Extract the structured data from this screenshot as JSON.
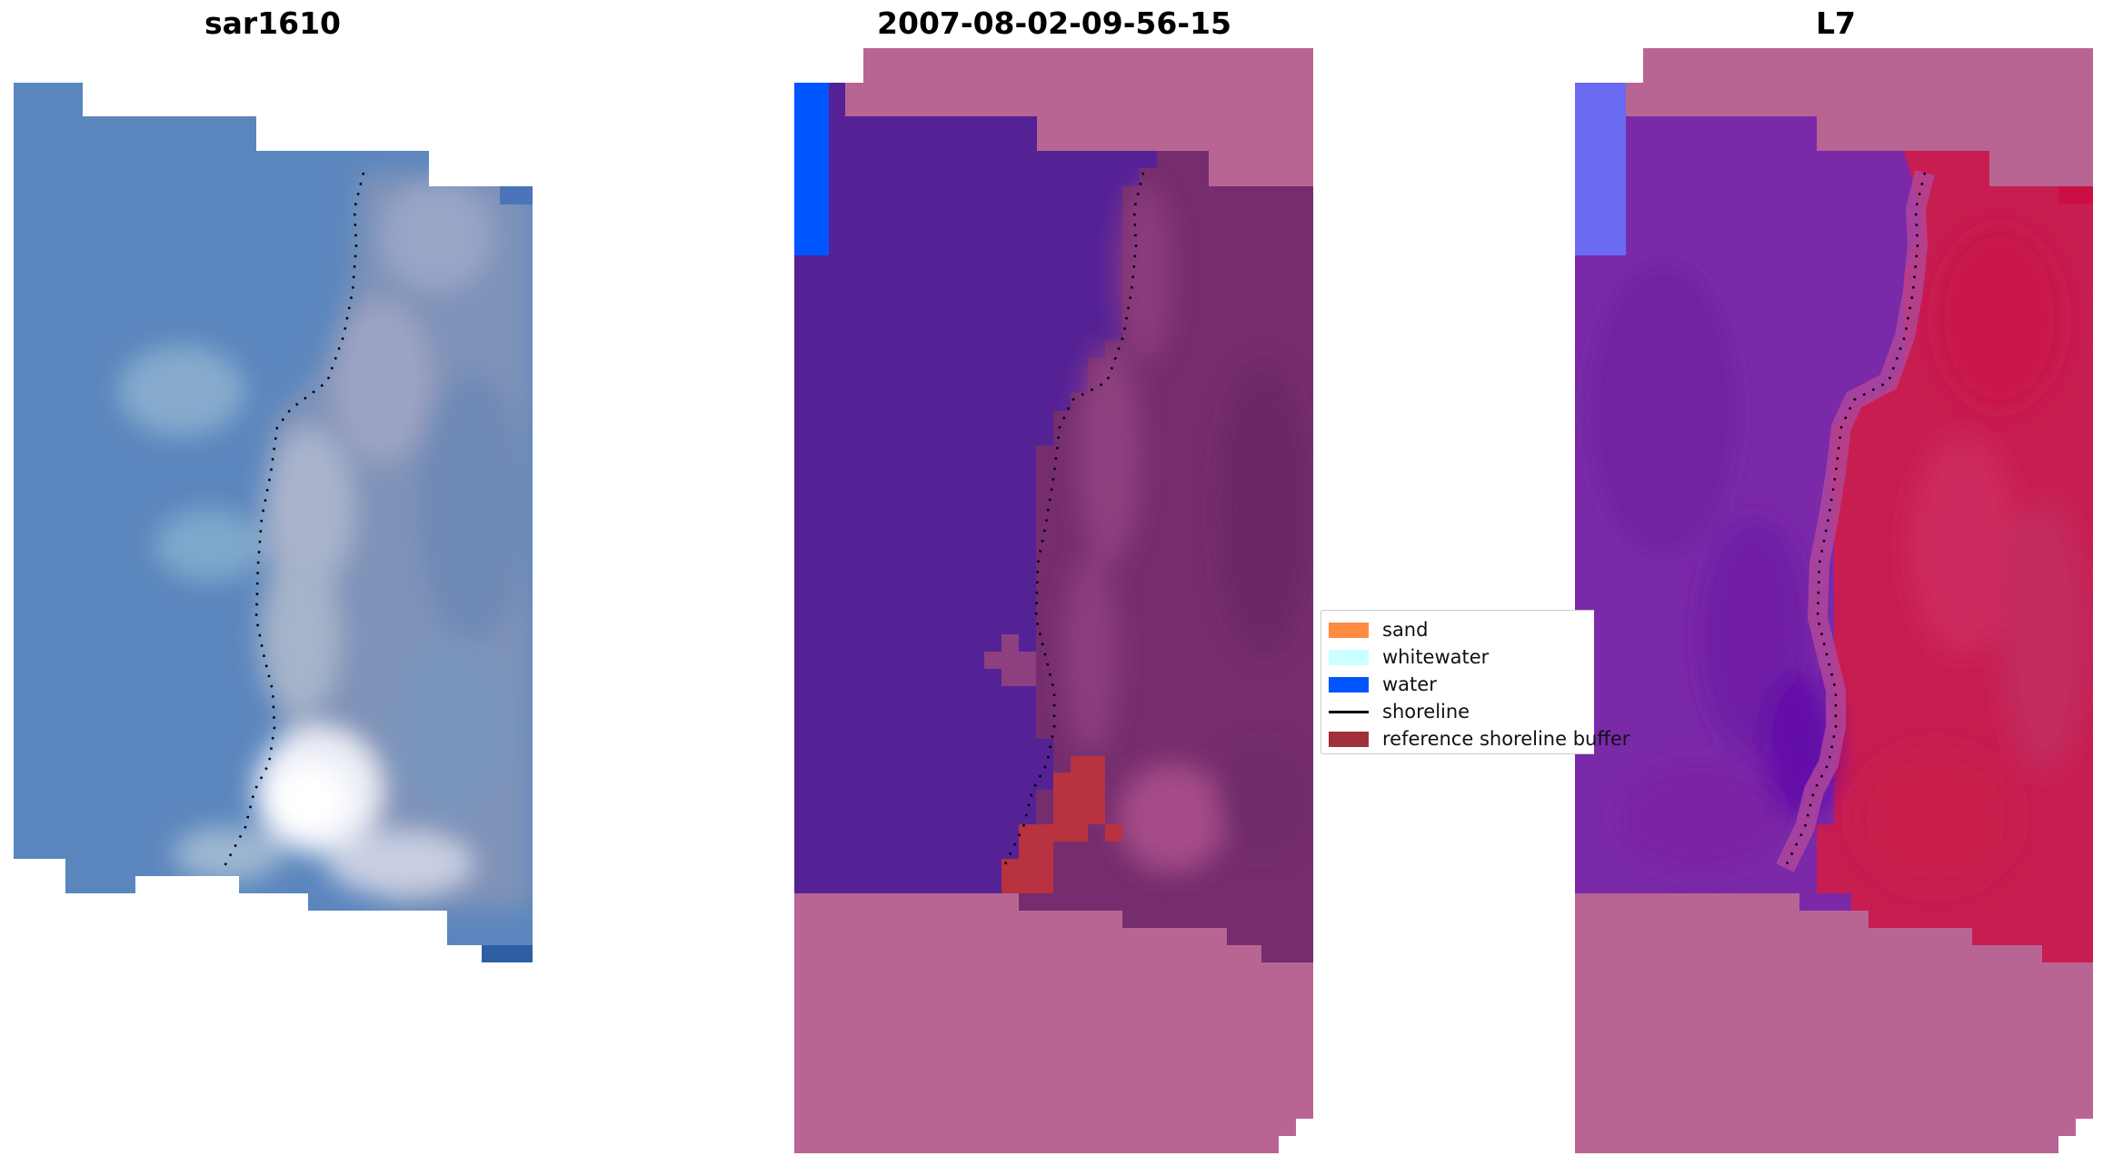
{
  "panels": [
    {
      "title": "sar1610"
    },
    {
      "title": "2007-08-02-09-56-15"
    },
    {
      "title": "L7"
    }
  ],
  "legend": {
    "items": [
      {
        "label": "sand",
        "color": "#ff8c42"
      },
      {
        "label": "whitewater",
        "color": "#ccffff"
      },
      {
        "label": "water",
        "color": "#0055ff"
      },
      {
        "label": "shoreline",
        "color": "#000000"
      },
      {
        "label": "reference shoreline buffer",
        "color": "#a0303a"
      }
    ]
  },
  "colors": {
    "rgb_water": "#5b86bd",
    "classified_sand": "#752d6e",
    "classified_water": "#552296",
    "mndwi_sea": "#7a2aa8",
    "mndwi_land": "#c71d50",
    "nodata": "#b96594"
  }
}
